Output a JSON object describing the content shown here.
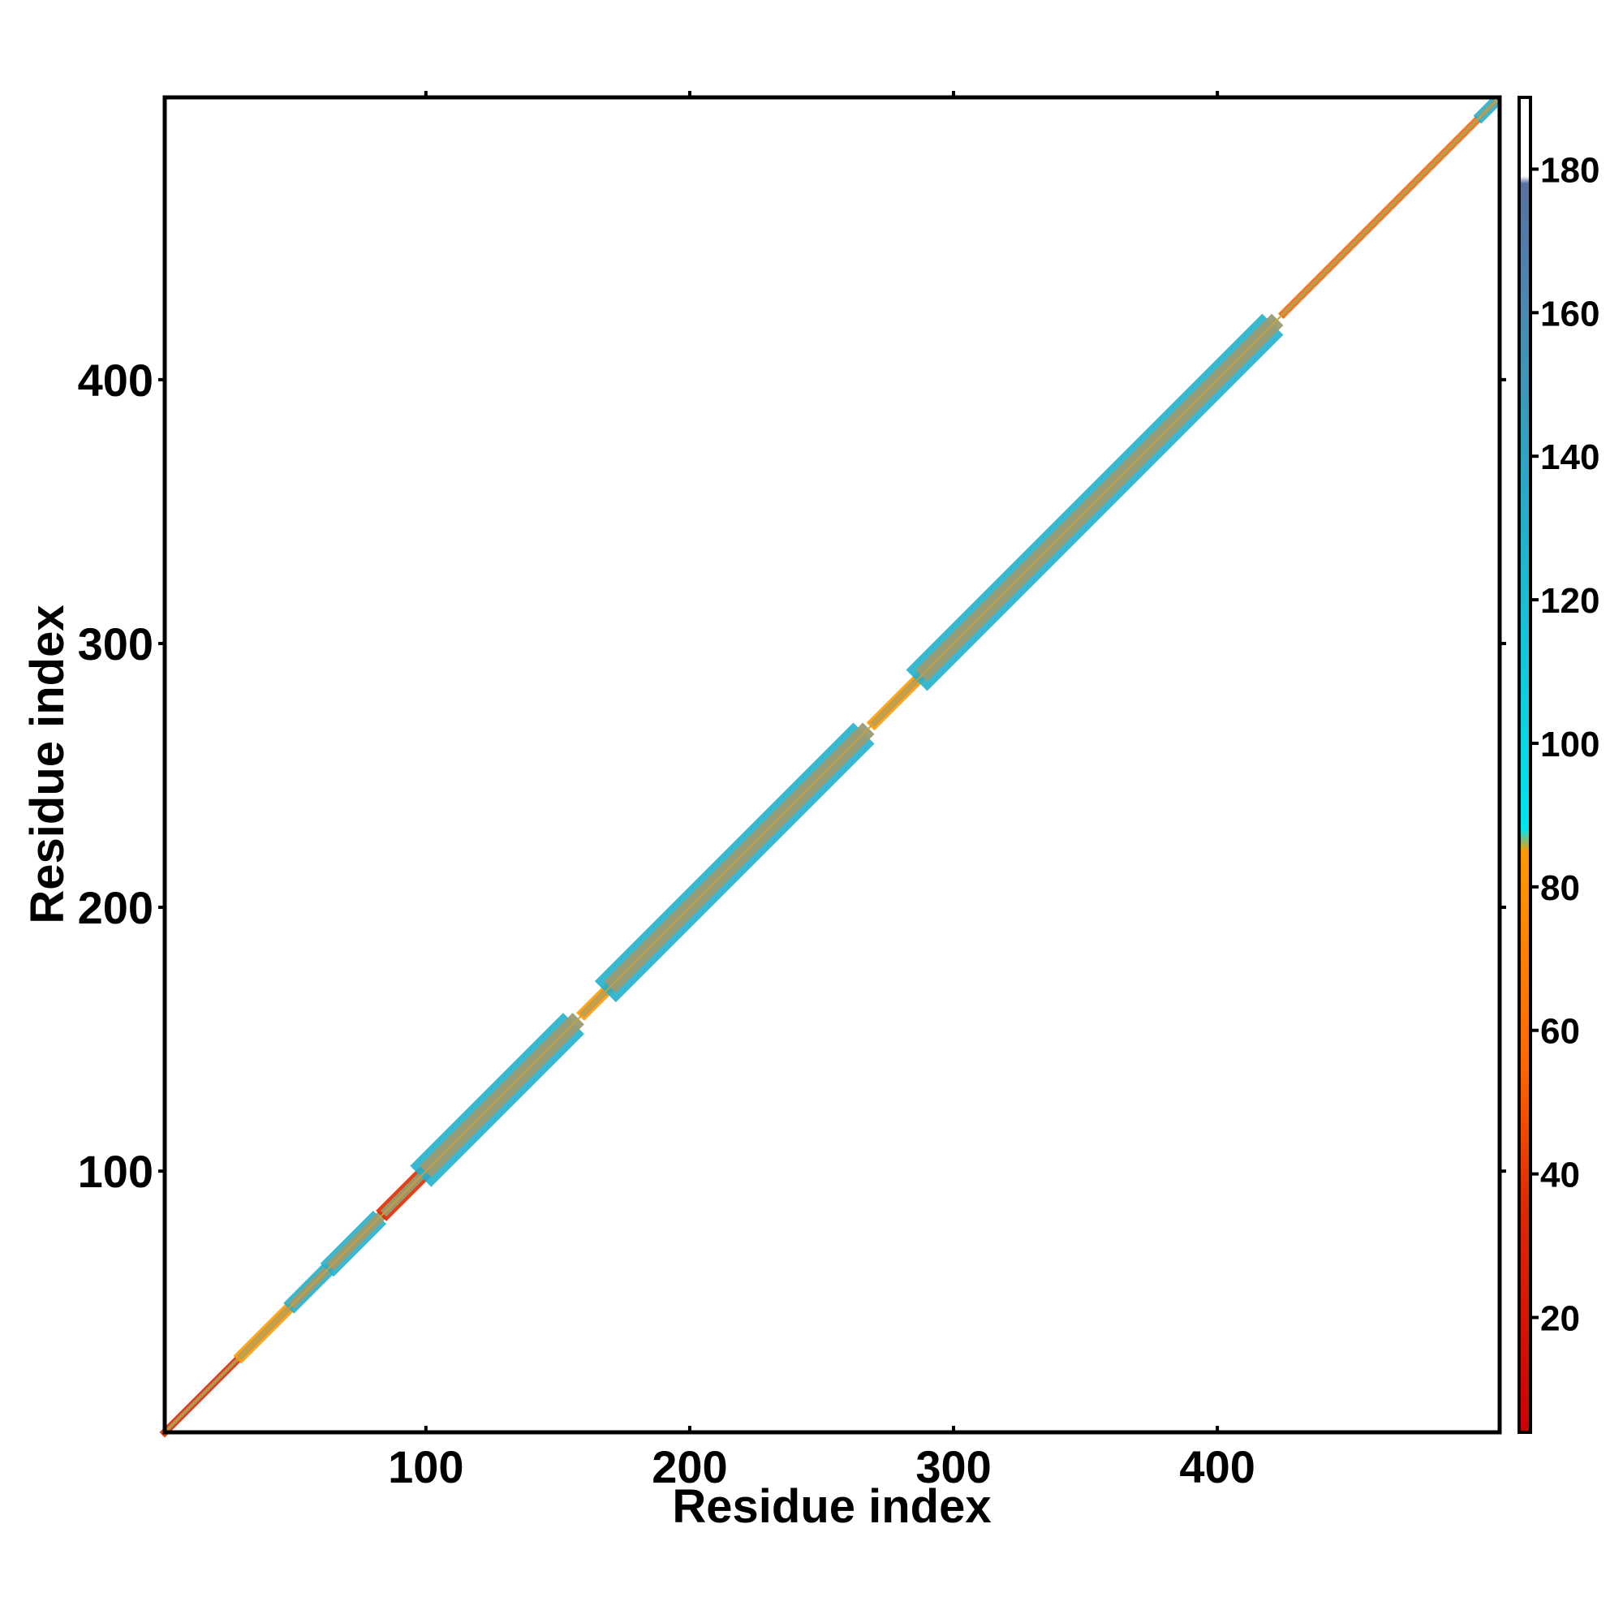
{
  "chart_data": {
    "type": "heatmap",
    "title": "",
    "xlabel": "Residue index",
    "ylabel": "Residue index",
    "xlim": [
      1,
      507
    ],
    "ylim": [
      1,
      507
    ],
    "x_ticks": [
      100,
      200,
      300,
      400
    ],
    "y_ticks": [
      100,
      200,
      300,
      400
    ],
    "grid": false,
    "legend": "colorbar-right",
    "colorbar": {
      "range": [
        4,
        190
      ],
      "ticks": [
        20,
        40,
        60,
        80,
        100,
        120,
        140,
        160,
        180
      ],
      "stops": [
        {
          "value": 4,
          "color": "#cc0000"
        },
        {
          "value": 36,
          "color": "#dd2a00"
        },
        {
          "value": 55,
          "color": "#ff6600"
        },
        {
          "value": 85,
          "color": "#ff9900"
        },
        {
          "value": 88,
          "color": "#00e5ee"
        },
        {
          "value": 130,
          "color": "#22b0cc"
        },
        {
          "value": 160,
          "color": "#4a8ab0"
        },
        {
          "value": 178,
          "color": "#5870a0"
        },
        {
          "value": 179,
          "color": "#ffffff"
        },
        {
          "value": 190,
          "color": "#ffffff"
        }
      ]
    },
    "band": {
      "description_color_main": "#9a9a72",
      "segments": [
        {
          "start": 1,
          "end": 30,
          "value": 20,
          "width": 2
        },
        {
          "start": 30,
          "end": 50,
          "value": 70,
          "width": 3
        },
        {
          "start": 50,
          "end": 65,
          "value": 110,
          "width": 4
        },
        {
          "start": 65,
          "end": 85,
          "value": 120,
          "width": 5
        },
        {
          "start": 85,
          "end": 102,
          "value": 25,
          "width": 4
        },
        {
          "start": 102,
          "end": 160,
          "value": 130,
          "width": 8
        },
        {
          "start": 160,
          "end": 172,
          "value": 70,
          "width": 3
        },
        {
          "start": 172,
          "end": 270,
          "value": 130,
          "width": 8
        },
        {
          "start": 270,
          "end": 290,
          "value": 70,
          "width": 3
        },
        {
          "start": 290,
          "end": 425,
          "value": 130,
          "width": 8
        },
        {
          "start": 425,
          "end": 500,
          "value": 40,
          "width": 2
        },
        {
          "start": 500,
          "end": 507,
          "value": 130,
          "width": 3
        }
      ]
    }
  }
}
